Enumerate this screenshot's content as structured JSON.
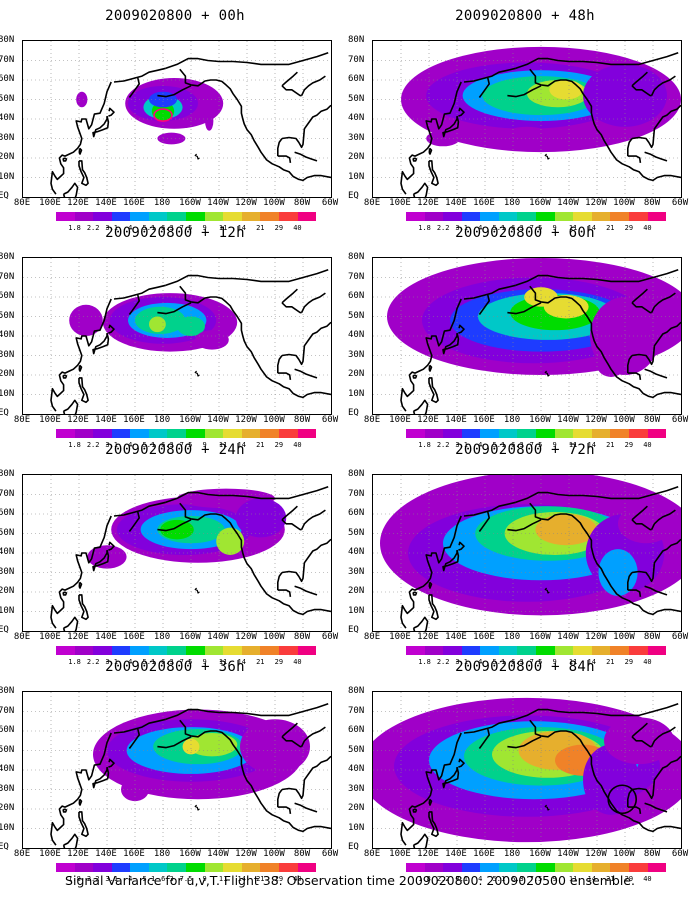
{
  "panels": [
    {
      "title": "2009020800 + 00h",
      "lead": 0
    },
    {
      "title": "2009020800 + 48h",
      "lead": 48
    },
    {
      "title": "2009020800 + 12h",
      "lead": 12
    },
    {
      "title": "2009020800 + 60h",
      "lead": 60
    },
    {
      "title": "2009020800 + 24h",
      "lead": 24
    },
    {
      "title": "2009020800 + 72h",
      "lead": 72
    },
    {
      "title": "2009020800 + 36h",
      "lead": 36
    },
    {
      "title": "2009020800 + 84h",
      "lead": 84
    }
  ],
  "lat_labels": [
    "80N",
    "70N",
    "60N",
    "50N",
    "40N",
    "30N",
    "20N",
    "10N",
    "EQ"
  ],
  "lon_labels": [
    "80E",
    "100E",
    "120E",
    "140E",
    "160E",
    "180",
    "160W",
    "140W",
    "120W",
    "100W",
    "80W",
    "60W"
  ],
  "colorbar": {
    "labels": [
      "1.8",
      "2.2",
      "3.1",
      "4",
      "5.1",
      "6.3",
      "7.5",
      "9",
      "11",
      "14",
      "21",
      "29",
      "40"
    ],
    "colors": [
      "#a000c8",
      "#8200dc",
      "#1e3cff",
      "#00a0ff",
      "#00c8c8",
      "#00d28c",
      "#00dc00",
      "#a0e632",
      "#e6dc32",
      "#e6af2d",
      "#f08228",
      "#fa3c3c",
      "#f00082"
    ]
  },
  "caption": "Signal Variance for u,v,T. Flight 38. Observation time 2009020800. 2009020500 ensemble.",
  "map_domain": {
    "lon_min": 80,
    "lon_max": 300,
    "lat_min": 0,
    "lat_max": 80
  },
  "annotations": [
    {
      "panel_lead": 0,
      "shape": "ellipse",
      "color": "#ff0080",
      "lon": 180,
      "lat": 42
    },
    {
      "panel_lead": 84,
      "shape": "circle",
      "color": "#000000",
      "lon": 258,
      "lat": 25
    }
  ]
}
